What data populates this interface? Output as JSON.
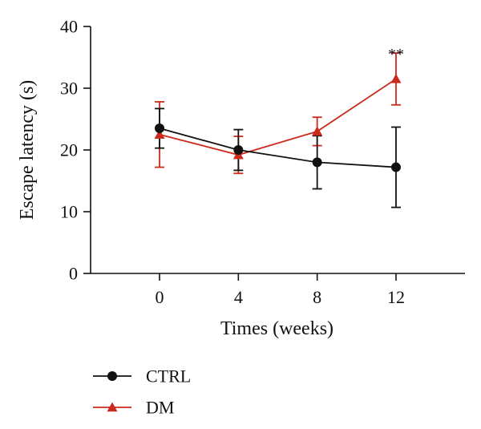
{
  "chart_data": {
    "type": "line",
    "title": "",
    "xlabel": "Times (weeks)",
    "ylabel": "Escape latency (s)",
    "x": [
      0,
      4,
      8,
      12
    ],
    "xlim": [
      -3.5,
      15.5
    ],
    "ylim": [
      0,
      40
    ],
    "yticks": [
      0,
      10,
      20,
      30,
      40
    ],
    "xticks": [
      0,
      4,
      8,
      12
    ],
    "grid": false,
    "legend_position": "bottom-left",
    "series": [
      {
        "name": "CTRL",
        "color": "#111111",
        "marker": "circle",
        "values": [
          23.5,
          20.0,
          18.0,
          17.2
        ],
        "error": [
          3.2,
          3.3,
          4.3,
          6.5
        ]
      },
      {
        "name": "DM",
        "color": "#cc2a1c",
        "marker": "triangle",
        "values": [
          22.5,
          19.2,
          23.0,
          31.5
        ],
        "error": [
          5.3,
          3.0,
          2.3,
          4.2
        ]
      }
    ],
    "annotations": [
      {
        "text": "**",
        "x": 12,
        "y": 36.5
      }
    ]
  }
}
